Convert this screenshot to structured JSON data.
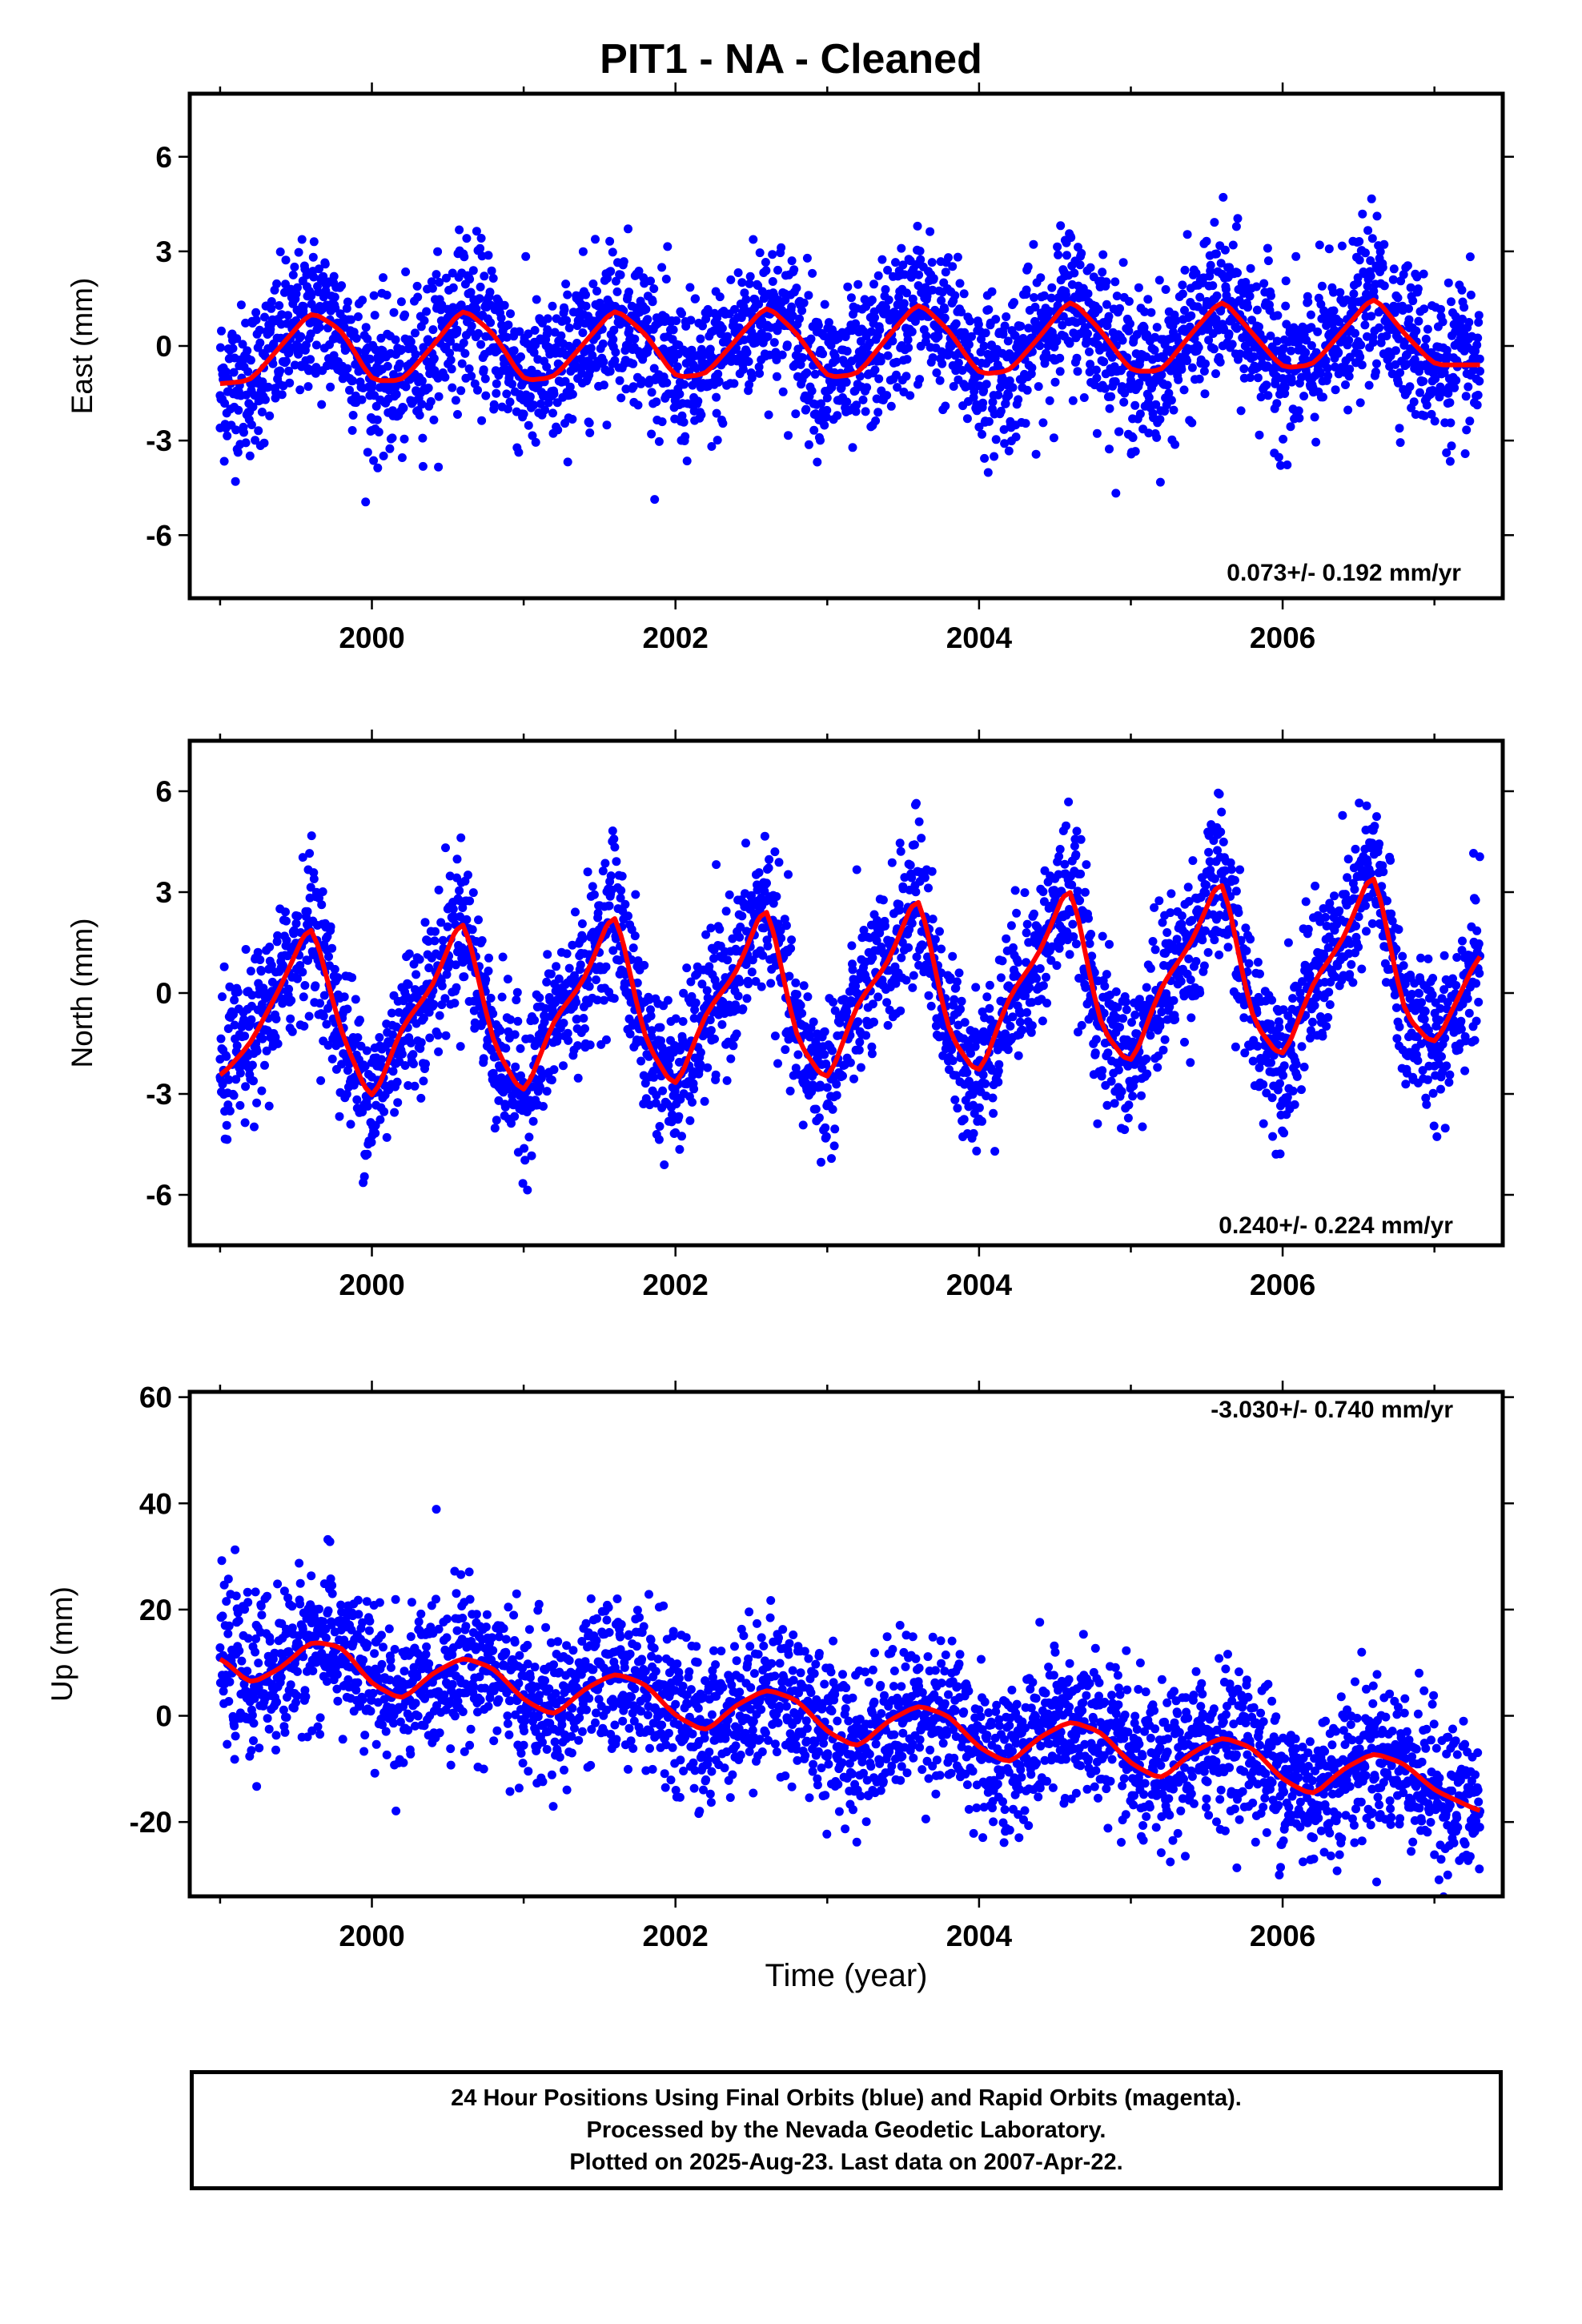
{
  "title": "PIT1  - NA - Cleaned",
  "xlabel": "Time (year)",
  "colors": {
    "points": "#0000ff",
    "fit": "#ff0000",
    "frame": "#000000"
  },
  "footer": {
    "line1": "24 Hour Positions Using Final Orbits (blue) and Rapid Orbits (magenta).",
    "line2": "Processed by the Nevada Geodetic Laboratory.",
    "line3": "Plotted on 2025-Aug-23. Last data on 2007-Apr-22."
  },
  "chart_data": [
    {
      "type": "scatter",
      "ylabel": "East (mm)",
      "rate": "0.073+/- 0.192 mm/yr",
      "xlim": [
        1998.8,
        2007.45
      ],
      "ylim": [
        -8,
        8
      ],
      "xticks": [
        2000,
        2002,
        2004,
        2006
      ],
      "yticks": [
        -6,
        -3,
        0,
        3,
        6
      ],
      "series": [
        {
          "kind": "points",
          "x": [
            1999.0,
            1999.25,
            1999.5,
            1999.75,
            2000.0,
            2000.25,
            2000.5,
            2000.75,
            2001.0,
            2001.25,
            2001.5,
            2001.75,
            2002.0,
            2002.25,
            2002.5,
            2002.75,
            2003.0,
            2003.25,
            2003.5,
            2003.75,
            2004.0,
            2004.25,
            2004.5,
            2004.75,
            2005.0,
            2005.25,
            2005.5,
            2005.75,
            2006.0,
            2006.25,
            2006.5,
            2006.75,
            2007.0,
            2007.3
          ],
          "y": [
            -2.6,
            -1.6,
            0.8,
            -0.3,
            -1.2,
            -0.7,
            0.9,
            0.3,
            -1.0,
            -0.8,
            1.0,
            0.6,
            -0.9,
            -0.6,
            1.1,
            0.7,
            -0.9,
            -0.4,
            1.2,
            0.8,
            -0.8,
            -0.3,
            1.1,
            0.8,
            -0.9,
            -1.5,
            1.3,
            0.6,
            -0.7,
            -0.4,
            1.4,
            0.5,
            -0.7,
            -0.8
          ]
        },
        {
          "kind": "fit",
          "x": [
            1999.0,
            1999.2,
            1999.4,
            1999.6,
            1999.8,
            2000.0,
            2000.2,
            2000.4,
            2000.6,
            2000.8,
            2001.0,
            2001.2,
            2001.4,
            2001.6,
            2001.8,
            2002.0,
            2002.2,
            2002.4,
            2002.6,
            2002.8,
            2003.0,
            2003.2,
            2003.4,
            2003.6,
            2003.8,
            2004.0,
            2004.2,
            2004.4,
            2004.6,
            2004.8,
            2005.0,
            2005.2,
            2005.4,
            2005.6,
            2005.8,
            2006.0,
            2006.2,
            2006.4,
            2006.6,
            2006.8,
            2007.0,
            2007.3
          ],
          "y": [
            -1.2,
            -1.1,
            0.0,
            1.1,
            0.5,
            -1.1,
            -1.1,
            0.0,
            1.2,
            0.4,
            -1.1,
            -1.0,
            0.1,
            1.2,
            0.4,
            -1.0,
            -0.9,
            0.2,
            1.3,
            0.4,
            -1.0,
            -0.9,
            0.3,
            1.4,
            0.5,
            -0.9,
            -0.8,
            0.3,
            1.5,
            0.5,
            -0.8,
            -0.8,
            0.4,
            1.5,
            0.4,
            -0.7,
            -0.6,
            0.5,
            1.6,
            0.4,
            -0.6,
            -0.6
          ]
        }
      ]
    },
    {
      "type": "scatter",
      "ylabel": "North (mm)",
      "rate": "0.240+/- 0.224 mm/yr",
      "xlim": [
        1998.8,
        2007.45
      ],
      "ylim": [
        -7.5,
        7.5
      ],
      "xticks": [
        2000,
        2002,
        2004,
        2006
      ],
      "yticks": [
        -6,
        -3,
        0,
        3,
        6
      ],
      "series": [
        {
          "kind": "points",
          "x": [
            1999.0,
            1999.25,
            1999.5,
            1999.75,
            2000.0,
            2000.25,
            2000.5,
            2000.75,
            2001.0,
            2001.25,
            2001.5,
            2001.75,
            2002.0,
            2002.25,
            2002.5,
            2002.75,
            2003.0,
            2003.25,
            2003.5,
            2003.75,
            2004.0,
            2004.25,
            2004.5,
            2004.75,
            2005.0,
            2005.25,
            2005.5,
            2005.75,
            2006.0,
            2006.25,
            2006.5,
            2006.75,
            2007.0,
            2007.3
          ],
          "y": [
            -2.5,
            -0.5,
            2.3,
            0.5,
            -2.5,
            -0.4,
            2.5,
            0.4,
            -2.9,
            -0.5,
            2.6,
            0.3,
            -2.8,
            -0.2,
            2.9,
            0.5,
            -2.4,
            0.0,
            3.1,
            0.6,
            -2.2,
            0.5,
            3.4,
            0.7,
            -2.1,
            0.8,
            3.6,
            0.6,
            -1.8,
            1.0,
            3.8,
            0.4,
            -1.5,
            1.1
          ]
        },
        {
          "kind": "fit",
          "x": [
            1999.0,
            1999.2,
            1999.4,
            1999.6,
            1999.8,
            2000.0,
            2000.2,
            2000.4,
            2000.6,
            2000.8,
            2001.0,
            2001.2,
            2001.4,
            2001.6,
            2001.8,
            2002.0,
            2002.2,
            2002.4,
            2002.6,
            2002.8,
            2003.0,
            2003.2,
            2003.4,
            2003.6,
            2003.8,
            2004.0,
            2004.2,
            2004.4,
            2004.6,
            2004.8,
            2005.0,
            2005.2,
            2005.4,
            2005.6,
            2005.8,
            2006.0,
            2006.2,
            2006.4,
            2006.6,
            2006.8,
            2007.0,
            2007.3
          ],
          "y": [
            -2.5,
            -1.5,
            0.2,
            2.2,
            -1.2,
            -3.3,
            -1.0,
            0.2,
            2.4,
            -1.5,
            -3.1,
            -0.8,
            0.4,
            2.6,
            -1.4,
            -2.9,
            -0.6,
            0.6,
            2.8,
            -1.4,
            -2.7,
            -0.3,
            0.9,
            3.1,
            -1.2,
            -2.5,
            -0.1,
            1.2,
            3.4,
            -1.0,
            -2.2,
            0.2,
            1.5,
            3.6,
            -0.8,
            -2.0,
            0.3,
            1.6,
            3.8,
            -0.6,
            -1.6,
            1.2
          ]
        }
      ]
    },
    {
      "type": "scatter",
      "ylabel": "Up (mm)",
      "rate": "-3.030+/- 0.740 mm/yr",
      "xlim": [
        1998.8,
        2007.45
      ],
      "ylim": [
        -34,
        61
      ],
      "xticks": [
        2000,
        2002,
        2004,
        2006
      ],
      "yticks": [
        -20,
        0,
        20,
        40,
        60
      ],
      "series": [
        {
          "kind": "points",
          "x": [
            1999.0,
            1999.25,
            1999.5,
            1999.75,
            2000.0,
            2000.25,
            2000.5,
            2000.75,
            2001.0,
            2001.25,
            2001.5,
            2001.75,
            2002.0,
            2002.25,
            2002.5,
            2002.75,
            2003.0,
            2003.25,
            2003.5,
            2003.75,
            2004.0,
            2004.25,
            2004.5,
            2004.75,
            2005.0,
            2005.25,
            2005.5,
            2005.75,
            2006.0,
            2006.25,
            2006.5,
            2006.75,
            2007.0,
            2007.3
          ],
          "y": [
            11,
            6,
            13,
            13,
            8,
            3,
            9,
            10,
            4,
            1,
            6,
            7,
            0,
            -3,
            3,
            4,
            -3,
            -6,
            1,
            1,
            -6,
            -9,
            -3,
            -2,
            -8,
            -12,
            -6,
            -5,
            -11,
            -14,
            -8,
            -8,
            -14,
            -18
          ]
        },
        {
          "kind": "fit",
          "x": [
            1999.0,
            1999.2,
            1999.4,
            1999.6,
            1999.8,
            2000.0,
            2000.2,
            2000.4,
            2000.6,
            2000.8,
            2001.0,
            2001.2,
            2001.4,
            2001.6,
            2001.8,
            2002.0,
            2002.2,
            2002.4,
            2002.6,
            2002.8,
            2003.0,
            2003.2,
            2003.4,
            2003.6,
            2003.8,
            2004.0,
            2004.2,
            2004.4,
            2004.6,
            2004.8,
            2005.0,
            2005.2,
            2005.4,
            2005.6,
            2005.8,
            2006.0,
            2006.2,
            2006.4,
            2006.6,
            2006.8,
            2007.0,
            2007.3
          ],
          "y": [
            11,
            6,
            9,
            14,
            13,
            6,
            3,
            8,
            11,
            9,
            3,
            0,
            5,
            8,
            6,
            0,
            -3,
            2,
            5,
            3,
            -3,
            -6,
            -1,
            2,
            0,
            -6,
            -9,
            -4,
            -1,
            -3,
            -9,
            -12,
            -7,
            -4,
            -6,
            -12,
            -15,
            -10,
            -7,
            -9,
            -14,
            -18
          ]
        }
      ]
    }
  ]
}
